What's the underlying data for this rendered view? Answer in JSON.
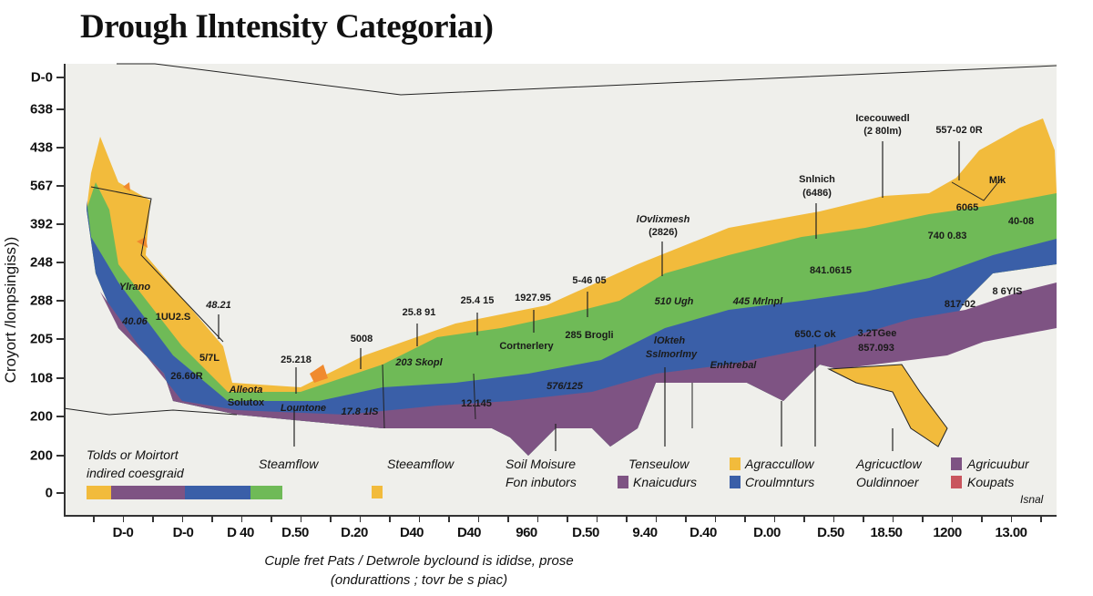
{
  "title": "Drough Ilntensity Categoriaı)",
  "y_axis": {
    "label": "Croyort /lonpsingiss))",
    "ticks": [
      "D-0",
      "638",
      "438",
      "567",
      "392",
      "248",
      "288",
      "205",
      "108",
      "200",
      "200",
      "0"
    ]
  },
  "x_axis": {
    "ticks": [
      "D-0",
      "D-0",
      "D 40",
      "D.50",
      "D.20",
      "D40",
      "D40",
      "960",
      "D.50",
      "9.40",
      "D.40",
      "D.00",
      "D.50",
      "18.50",
      "1200",
      "13.00"
    ]
  },
  "caption": {
    "line1": "Cuple fret Pats / Detwrole byclound is ididse, prose",
    "line2": "(ondurattions ; tovr be s piac)"
  },
  "colors": {
    "yellow": "#f2bb3c",
    "green": "#6fba57",
    "blue": "#3a5fa8",
    "purple": "#7e5383",
    "orange": "#f08a2e",
    "red": "#c9555e",
    "background": "#efefeb"
  },
  "map": {
    "labels": [
      "Ylrano",
      "40.06",
      "1UU2.S",
      "48.21",
      "5/7L",
      "26.60R",
      "Alleota",
      "Solutox",
      "25.218",
      "Lountone",
      "5008",
      "17.8 1IS",
      "25.8 91",
      "203 Skopl",
      "25.4 15",
      "1927.95",
      "Cortnerlery",
      "5-46 05",
      "285 Brogli",
      "12.145",
      "576/125",
      "lOvlixmesh",
      "(2826)",
      "510 Ugh",
      "lOkteh",
      "Sslmorlmy",
      "445 Mrlnpl",
      "Enhtrebal",
      "Snlnich",
      "(6486)",
      "Icecouwedl",
      "(2 80lm)",
      "557-02 0R",
      "Mlk",
      "6065",
      "740 0.83",
      "40-08",
      "841.0615",
      "817-02",
      "8 6YIS",
      "650.C ok",
      "3.2TGee",
      "857.093"
    ]
  },
  "legend": {
    "title_line1": "Tolds or Moirtort",
    "title_line2": "indired coesgraid",
    "items": [
      {
        "label": "Steamflow"
      },
      {
        "label": "Steeamflow"
      },
      {
        "label": "Soil Moisure"
      },
      {
        "label": "Fon inbutors"
      },
      {
        "label": "Tenseulow"
      },
      {
        "label": "Agraccullow",
        "color": "#f2bb3c"
      },
      {
        "label": "Knaicudurs",
        "color": "#7e5383"
      },
      {
        "label": "Croulmnturs",
        "color": "#3a5fa8"
      },
      {
        "label": "Agricuctlow"
      },
      {
        "label": "Ouldinnoer"
      },
      {
        "label": "Agricuubur",
        "color": "#7e5383"
      },
      {
        "label": "Koupats",
        "color": "#c9555e"
      },
      {
        "label": "Isnal"
      }
    ]
  }
}
